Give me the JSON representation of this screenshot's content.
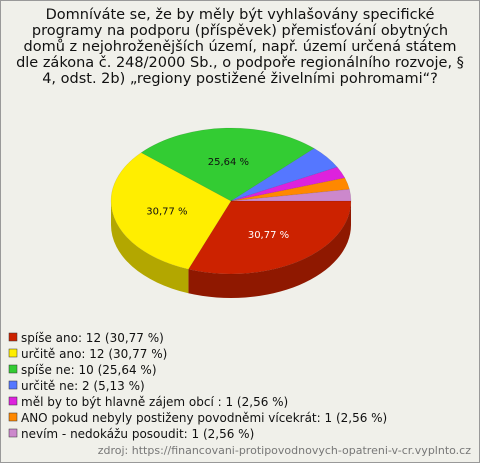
{
  "chart_data": {
    "type": "pie",
    "title": "Domníváte se, že by měly být vyhlašovány specifické programy na podporu (příspěvek) přemisťování obytných domů z nejohroženějších území, např. území určená státem dle zákona č. 248/2000 Sb., o podpoře regionálního rozvoje, § 4, odst. 2b) „regiony postižené živelními pohromami“?",
    "categories": [
      "spíše ano: 12 (30,77 %)",
      "určitě ano: 12 (30,77 %)",
      "spíše ne: 10 (25,64 %)",
      "určitě ne: 2 (5,13 %)",
      "měl by to být hlavně zájem obcí : 1 (2,56 %)",
      "ANO pokud nebyly postiženy povodněmi vícekrát: 1 (2,56 %)",
      "nevím - nedokážu posoudit: 1 (2,56 %)"
    ],
    "values": [
      30.77,
      30.77,
      25.64,
      5.13,
      2.56,
      2.56,
      2.56
    ],
    "value_labels": [
      "30,77 %",
      "30,77 %",
      "25,64 %",
      null,
      null,
      null,
      null
    ],
    "colors": [
      "#cc2200",
      "#ffee00",
      "#33cc33",
      "#5577ff",
      "#dd22dd",
      "#ff8800",
      "#cc88cc"
    ],
    "source": "zdroj: https://financovani-protipovodnovych-opatreni-v-cr.vyplnto.cz"
  }
}
